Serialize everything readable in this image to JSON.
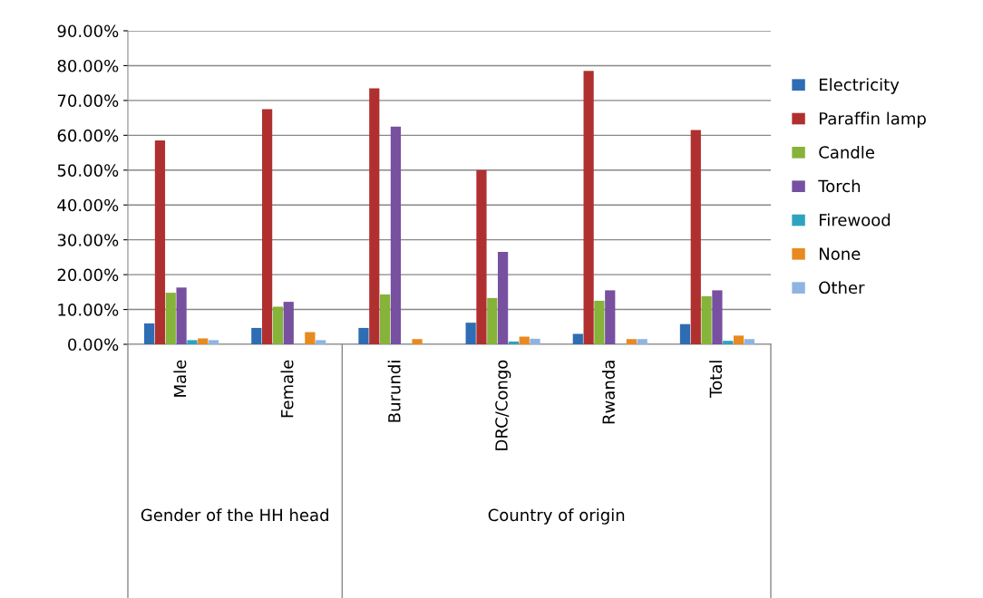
{
  "chart_data": {
    "type": "bar",
    "categories": [
      "Male",
      "Female",
      "Burundi",
      "DRC/Congo",
      "Rwanda",
      "Total"
    ],
    "annotations": [
      "Gender of the HH head",
      "Country of origin"
    ],
    "series": [
      {
        "name": "Electricity",
        "color": "#2e6db4",
        "values": [
          6.0,
          4.7,
          4.7,
          6.2,
          3.0,
          5.8
        ]
      },
      {
        "name": "Paraffin lamp",
        "color": "#b03030",
        "values": [
          58.5,
          67.5,
          73.5,
          50.0,
          78.5,
          61.5
        ]
      },
      {
        "name": "Candle",
        "color": "#86b33a",
        "values": [
          14.8,
          10.8,
          14.3,
          13.3,
          12.5,
          13.8
        ]
      },
      {
        "name": "Torch",
        "color": "#7750a0",
        "values": [
          16.3,
          12.2,
          62.5,
          26.5,
          15.5,
          15.5
        ]
      },
      {
        "name": "Firewood",
        "color": "#2ea3c0",
        "values": [
          1.2,
          0,
          0,
          0.8,
          0,
          1.0
        ]
      },
      {
        "name": "None",
        "color": "#e88a20",
        "values": [
          1.7,
          3.5,
          1.5,
          2.2,
          1.5,
          2.5
        ]
      },
      {
        "name": "Other",
        "color": "#8fb4e0",
        "values": [
          1.2,
          1.2,
          0,
          1.6,
          1.5,
          1.5
        ]
      }
    ],
    "ylim": [
      0,
      90
    ],
    "yticks": [
      {
        "value": 0,
        "label": "0.00%"
      },
      {
        "value": 10,
        "label": "10.00%"
      },
      {
        "value": 20,
        "label": "20.00%"
      },
      {
        "value": 30,
        "label": "30.00%"
      },
      {
        "value": 40,
        "label": "40.00%"
      },
      {
        "value": 50,
        "label": "50.00%"
      },
      {
        "value": 60,
        "label": "60.00%"
      },
      {
        "value": 70,
        "label": "70.00%"
      },
      {
        "value": 80,
        "label": "80.00%"
      },
      {
        "value": 90,
        "label": "90.00%"
      }
    ],
    "grid": "y",
    "legend": "right"
  }
}
